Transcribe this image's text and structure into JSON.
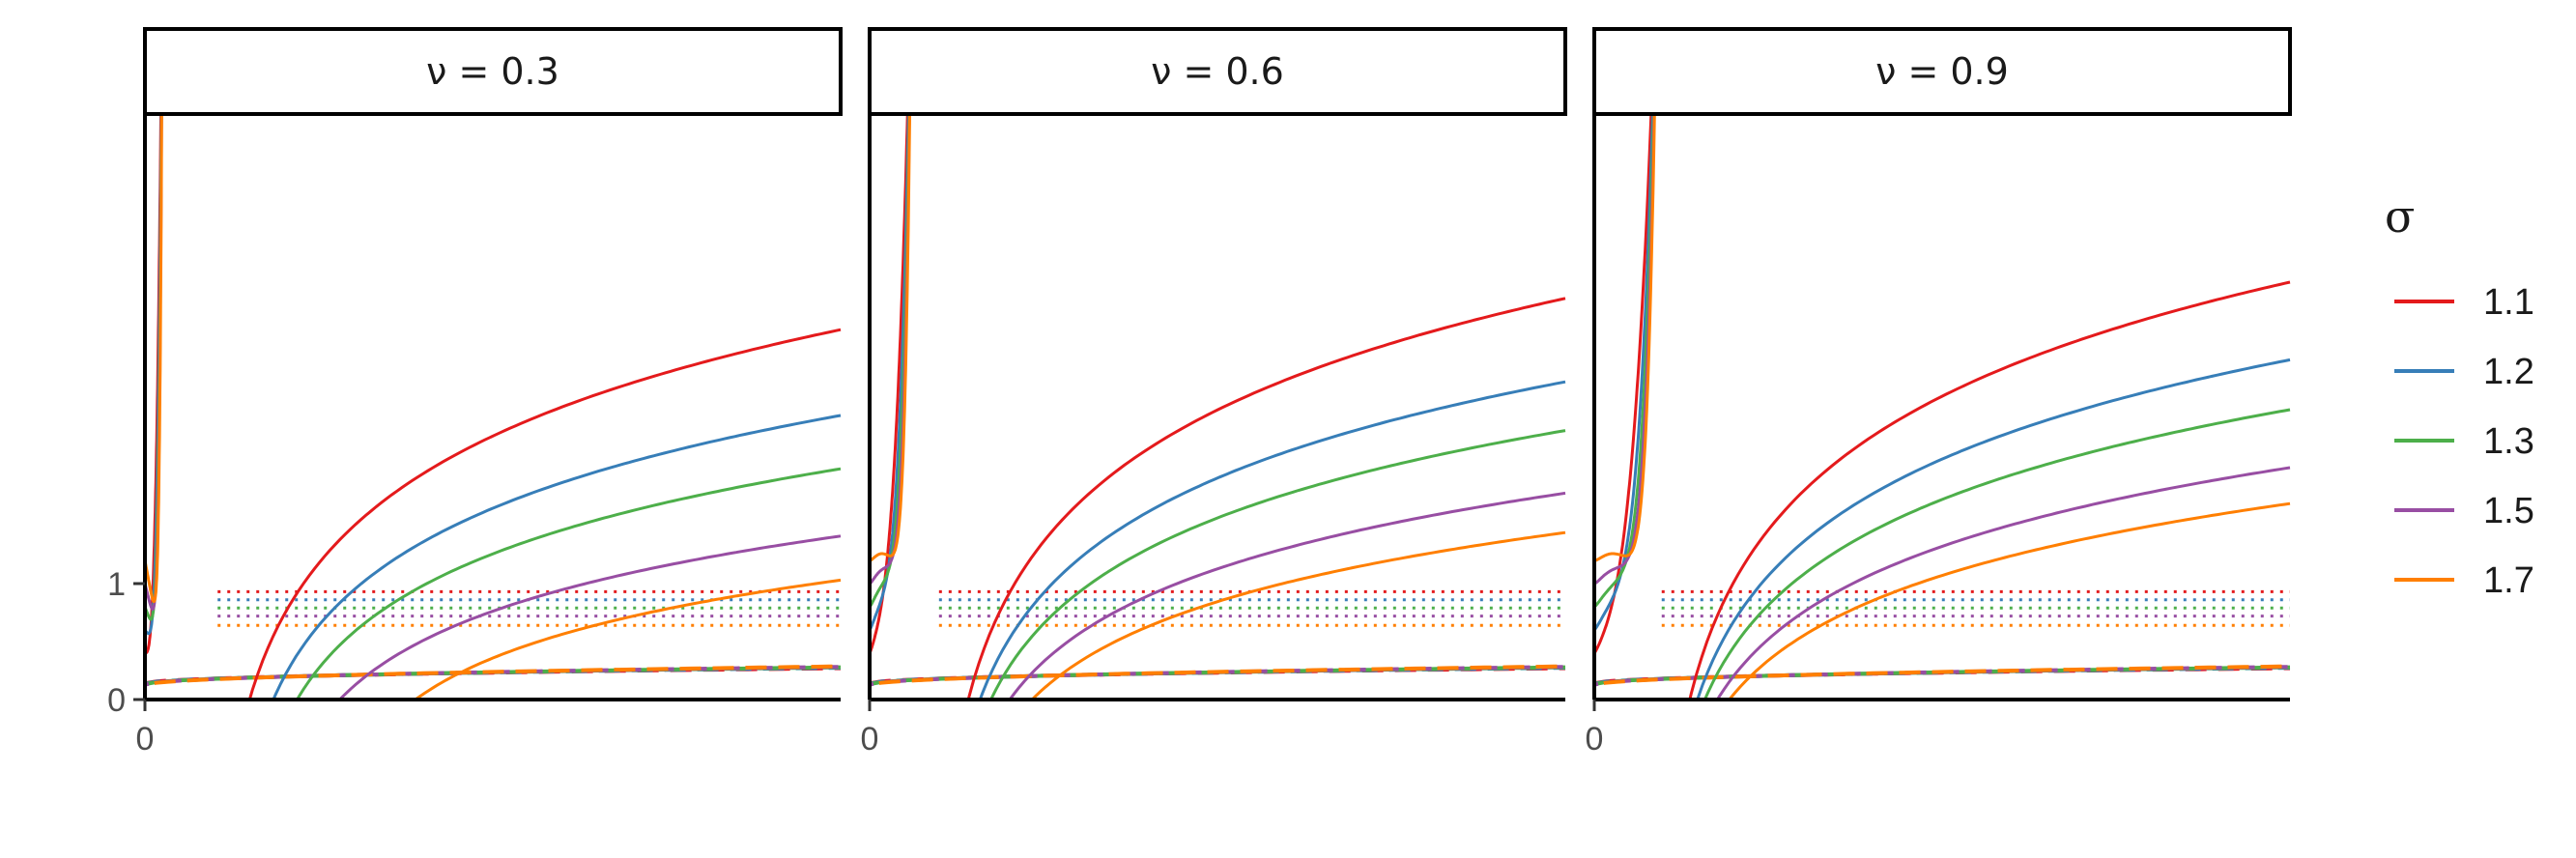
{
  "chart_data": {
    "type": "line",
    "facets": [
      {
        "label": "ν = 0.3",
        "nu": 0.3
      },
      {
        "label": "ν = 0.6",
        "nu": 0.6
      },
      {
        "label": "ν = 0.9",
        "nu": 0.9
      }
    ],
    "x_ticks": [
      {
        "value": 0,
        "label": "0"
      }
    ],
    "y_ticks": [
      {
        "value": 0,
        "label": "0"
      },
      {
        "value": 1,
        "label": "1"
      }
    ],
    "ylim": [
      0,
      5
    ],
    "xlim": [
      0,
      1
    ],
    "grid": false,
    "legend": {
      "title": "σ",
      "position": "right"
    },
    "series": [
      {
        "name": "1.1",
        "sigma": 1.1,
        "color": "#e41a1c"
      },
      {
        "name": "1.2",
        "sigma": 1.2,
        "color": "#377eb8"
      },
      {
        "name": "1.3",
        "sigma": 1.3,
        "color": "#4daf4a"
      },
      {
        "name": "1.5",
        "sigma": 1.5,
        "color": "#984ea3"
      },
      {
        "name": "1.7",
        "sigma": 1.7,
        "color": "#ff7f00"
      }
    ],
    "reference_levels": [
      {
        "sigma": 1.1,
        "y": 0.93
      },
      {
        "sigma": 1.2,
        "y": 0.86
      },
      {
        "sigma": 1.3,
        "y": 0.79
      },
      {
        "sigma": 1.5,
        "y": 0.72
      },
      {
        "sigma": 1.7,
        "y": 0.64
      }
    ],
    "curves": [
      {
        "nu": 0.3,
        "upper": [
          {
            "sigma": 1.1,
            "x0": 0.11,
            "x_end": 1.0,
            "y_end": 3.19
          },
          {
            "sigma": 1.2,
            "x0": 0.13,
            "x_end": 1.0,
            "y_end": 2.45
          },
          {
            "sigma": 1.3,
            "x0": 0.15,
            "x_end": 1.0,
            "y_end": 1.99
          },
          {
            "sigma": 1.5,
            "x0": 0.18,
            "x_end": 1.0,
            "y_end": 1.41
          },
          {
            "sigma": 1.7,
            "x0": 0.26,
            "x_end": 1.0,
            "y_end": 1.03
          }
        ],
        "spike_x": 0.025,
        "lower_start": 0.14,
        "lower_end": 0.27
      },
      {
        "nu": 0.6,
        "upper": [
          {
            "sigma": 1.1,
            "x0": 0.105,
            "x_end": 1.0,
            "y_end": 3.46
          },
          {
            "sigma": 1.2,
            "x0": 0.11,
            "x_end": 1.0,
            "y_end": 2.74
          },
          {
            "sigma": 1.3,
            "x0": 0.115,
            "x_end": 1.0,
            "y_end": 2.32
          },
          {
            "sigma": 1.5,
            "x0": 0.12,
            "x_end": 1.0,
            "y_end": 1.78
          },
          {
            "sigma": 1.7,
            "x0": 0.13,
            "x_end": 1.0,
            "y_end": 1.44
          }
        ],
        "spike_x": 0.06,
        "lower_start": 0.14,
        "lower_end": 0.27
      },
      {
        "nu": 0.9,
        "upper": [
          {
            "sigma": 1.1,
            "x0": 0.102,
            "x_end": 1.0,
            "y_end": 3.6
          },
          {
            "sigma": 1.2,
            "x0": 0.103,
            "x_end": 1.0,
            "y_end": 2.93
          },
          {
            "sigma": 1.3,
            "x0": 0.104,
            "x_end": 1.0,
            "y_end": 2.5
          },
          {
            "sigma": 1.5,
            "x0": 0.105,
            "x_end": 1.0,
            "y_end": 2.0
          },
          {
            "sigma": 1.7,
            "x0": 0.106,
            "x_end": 1.0,
            "y_end": 1.69
          }
        ],
        "spike_x": 0.09,
        "lower_start": 0.14,
        "lower_end": 0.27
      }
    ]
  }
}
